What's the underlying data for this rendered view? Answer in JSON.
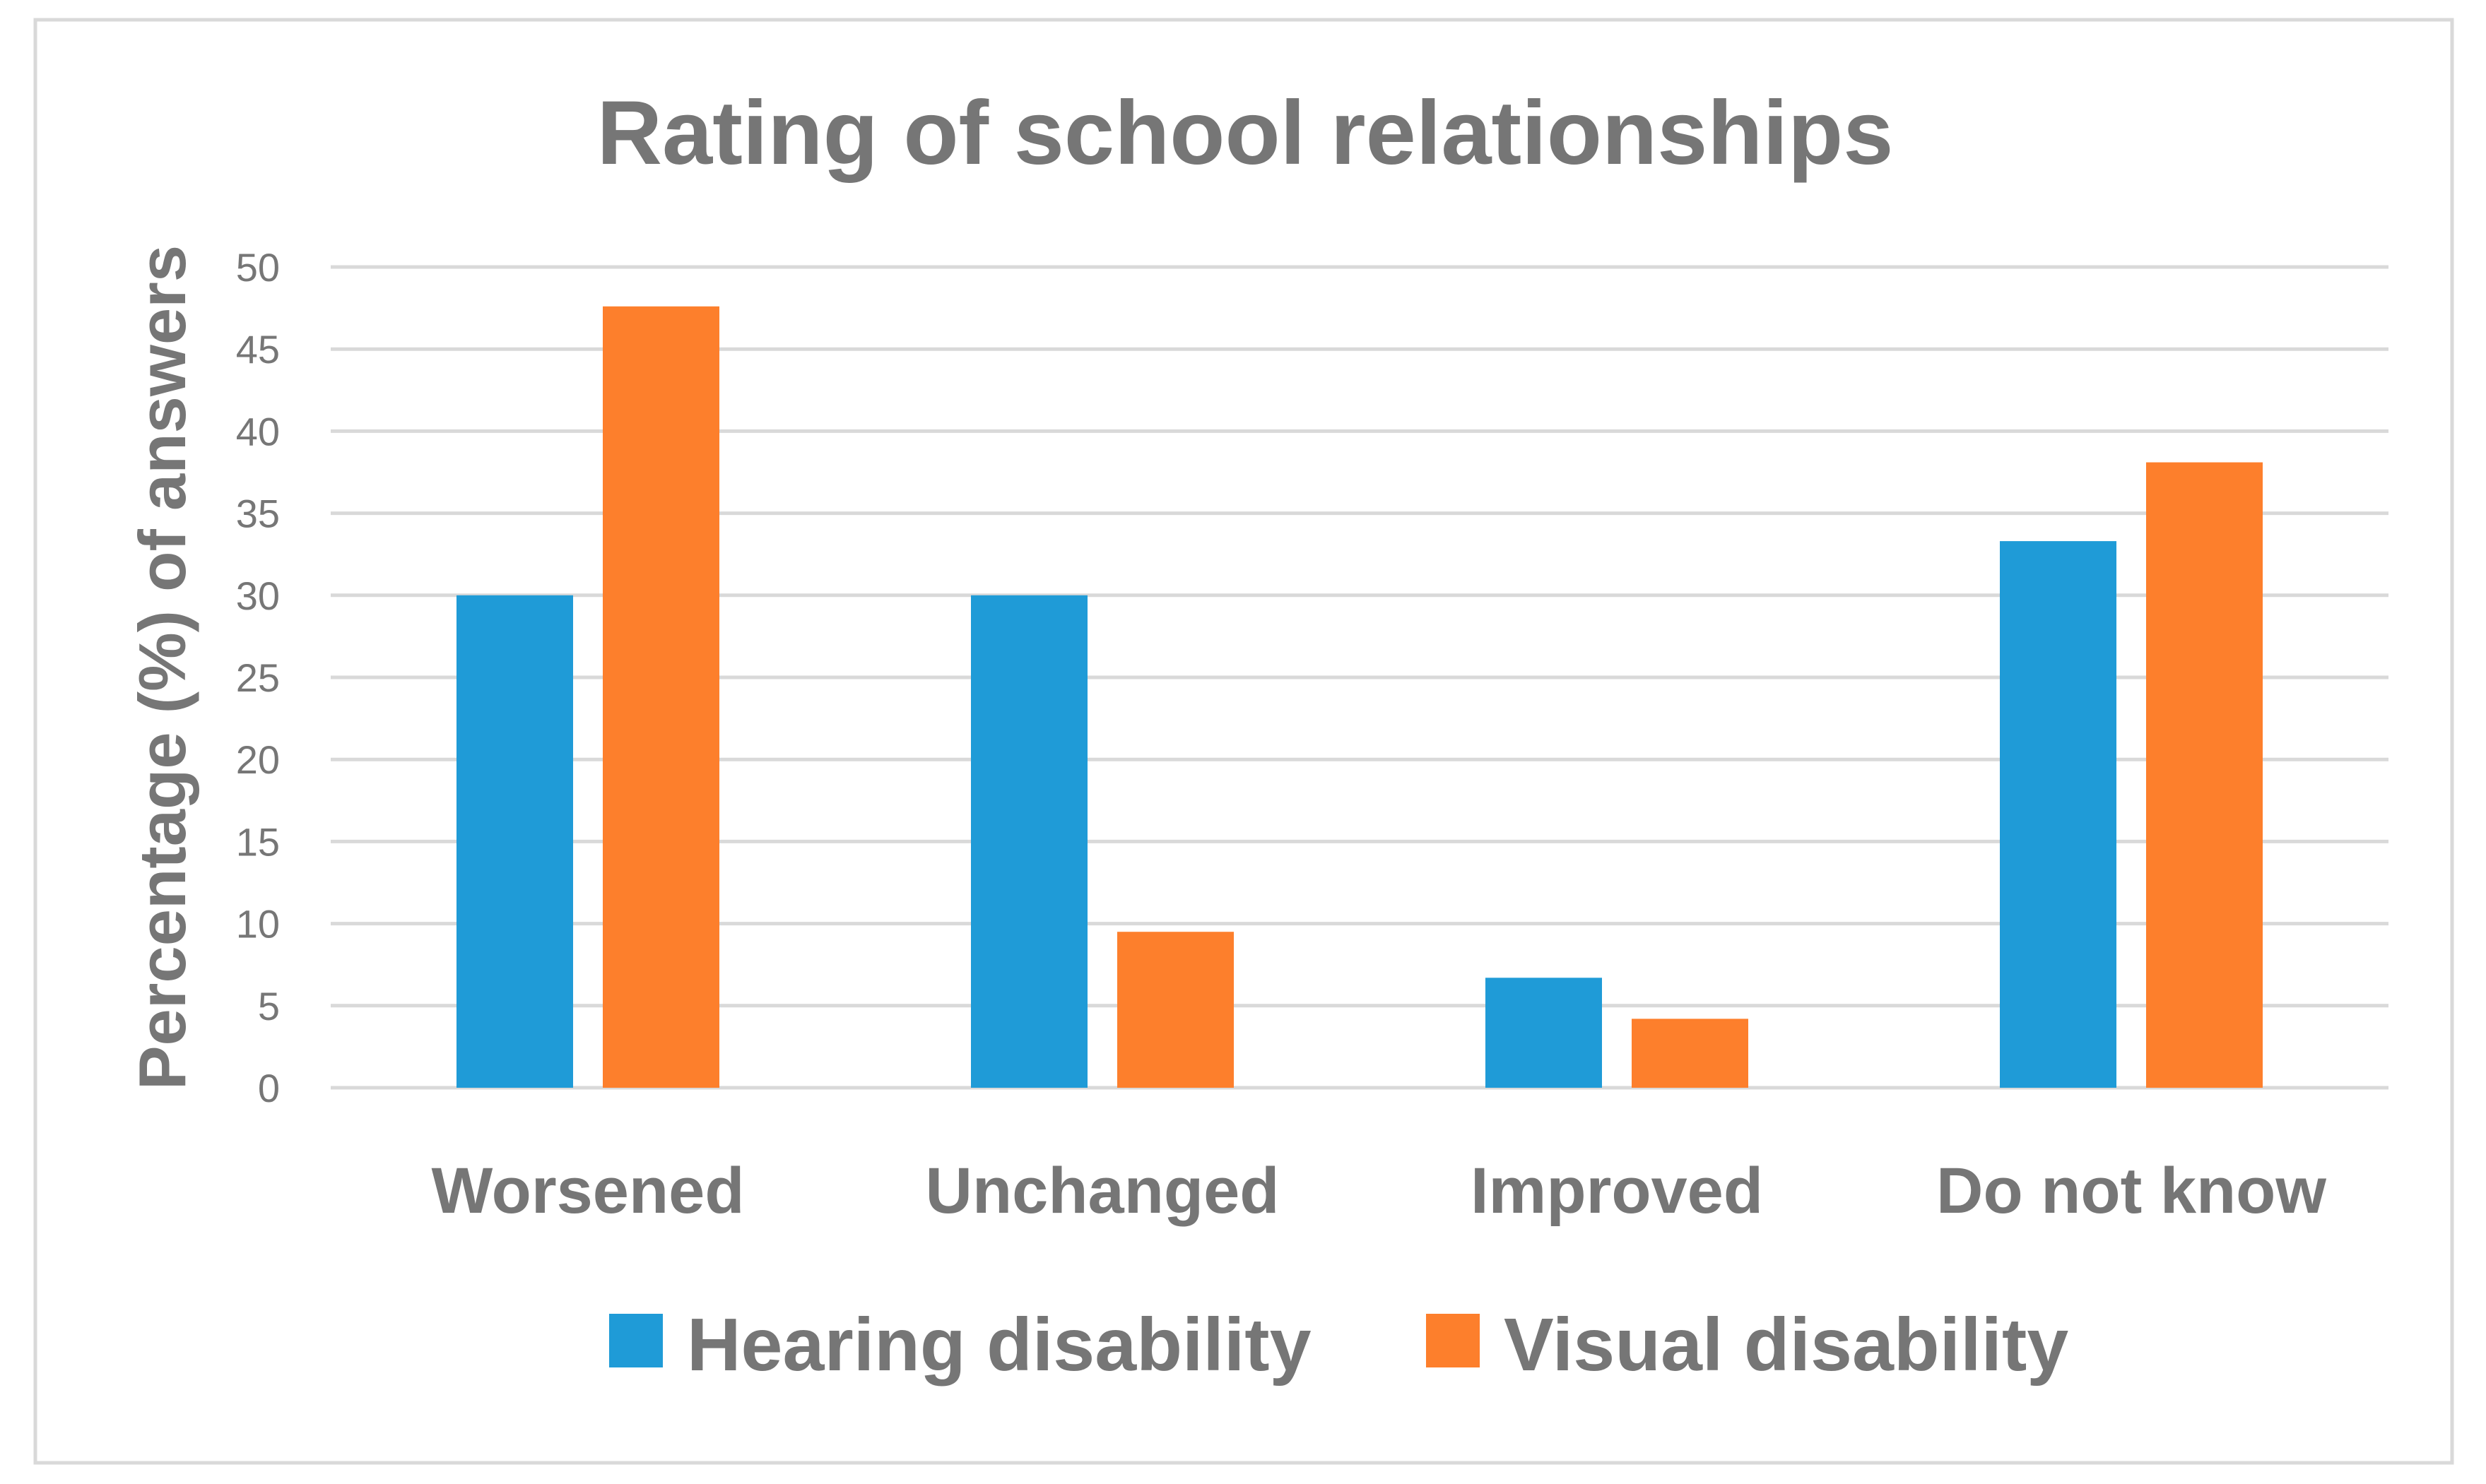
{
  "chart_data": {
    "type": "bar",
    "title": "Rating of school relationships",
    "xlabel": "",
    "ylabel": "Percentage (%) of answers",
    "categories": [
      "Worsened",
      "Unchanged",
      "Improved",
      "Do not know"
    ],
    "series": [
      {
        "name": "Hearing disability",
        "values": [
          30,
          30,
          6.7,
          33.3
        ],
        "color": "#1F9BD7"
      },
      {
        "name": "Visual disability",
        "values": [
          47.6,
          9.5,
          4.2,
          38.1
        ],
        "color": "#FD7F2C"
      }
    ],
    "ylim": [
      0,
      50
    ],
    "yticks": [
      "0",
      "5",
      "10",
      "15",
      "20",
      "25",
      "30",
      "35",
      "40",
      "45",
      "50"
    ],
    "grid": true,
    "legend_position": "bottom",
    "text_color": "#767676",
    "grid_color": "#D9D9D9"
  }
}
